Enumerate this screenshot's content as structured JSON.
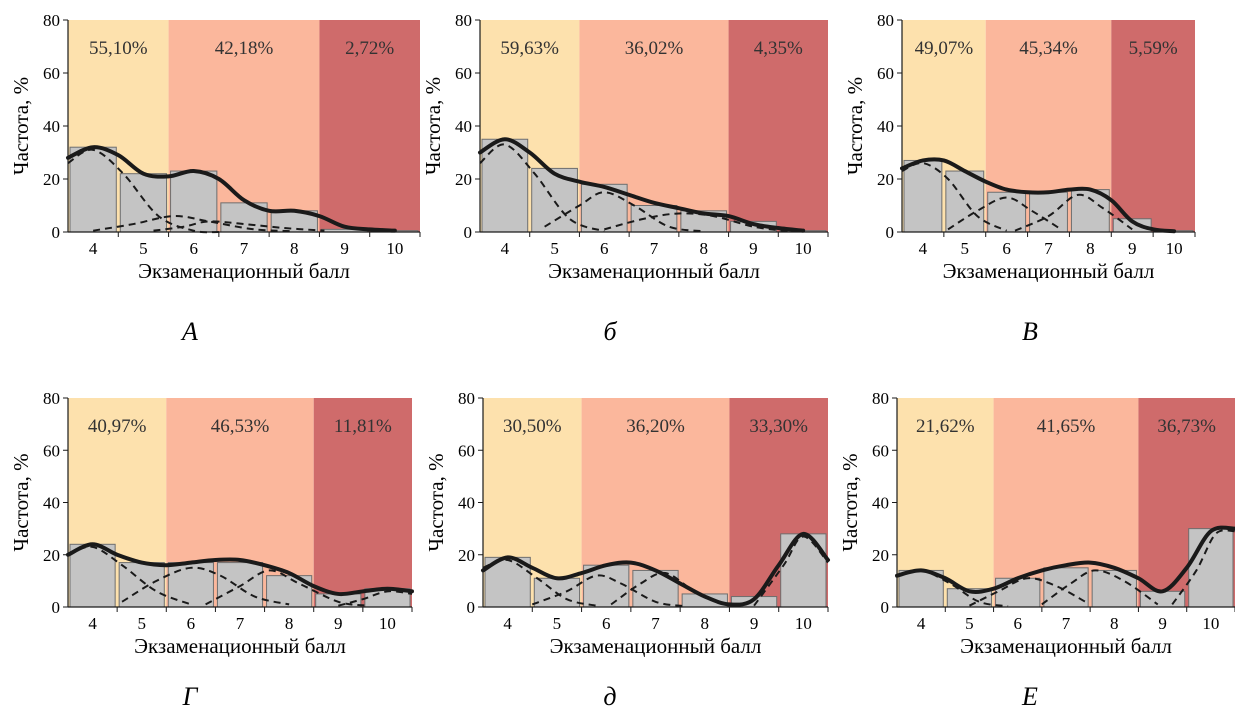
{
  "ylabel": "Частота, %",
  "xlabel": "Экзаменационный балл",
  "zone_colors": [
    "#fde1ad",
    "#fbb79c",
    "#cf6b6b"
  ],
  "bar_color": "#c4c4c4",
  "chart_data": [
    {
      "type": "bar",
      "panel_label": "А",
      "categories": [
        "4",
        "5",
        "6",
        "7",
        "8",
        "9",
        "10"
      ],
      "values": [
        32,
        22,
        23,
        11,
        8,
        1,
        0.5
      ],
      "ylim": [
        0,
        80
      ],
      "yticks": [
        0,
        20,
        40,
        60,
        80
      ],
      "zones": [
        {
          "label": "55,10%",
          "from": 3.5,
          "to": 5.5
        },
        {
          "label": "42,18%",
          "from": 5.5,
          "to": 8.5
        },
        {
          "label": "2,72%",
          "from": 8.5,
          "to": 10.5
        }
      ],
      "fit_curve": [
        [
          3.5,
          28
        ],
        [
          4,
          32
        ],
        [
          4.5,
          29
        ],
        [
          5,
          22
        ],
        [
          5.5,
          21
        ],
        [
          6,
          23
        ],
        [
          6.5,
          20
        ],
        [
          7,
          12
        ],
        [
          7.5,
          8
        ],
        [
          8,
          8
        ],
        [
          8.5,
          6
        ],
        [
          9,
          2
        ],
        [
          9.5,
          1
        ],
        [
          10,
          0.5
        ]
      ],
      "component_curves": [
        [
          [
            3.5,
            26
          ],
          [
            4,
            31
          ],
          [
            4.6,
            22
          ],
          [
            5.3,
            6
          ],
          [
            6,
            0.5
          ],
          [
            6.5,
            0
          ]
        ],
        [
          [
            4,
            0.5
          ],
          [
            4.8,
            3
          ],
          [
            5.6,
            6
          ],
          [
            6.3,
            4
          ],
          [
            7.2,
            1
          ],
          [
            8,
            0.3
          ]
        ],
        [
          [
            5.2,
            0.5
          ],
          [
            5.8,
            2
          ],
          [
            6.3,
            4
          ],
          [
            7,
            3
          ],
          [
            7.8,
            1.5
          ],
          [
            8.6,
            0.5
          ]
        ]
      ]
    },
    {
      "type": "bar",
      "panel_label": "б",
      "categories": [
        "4",
        "5",
        "6",
        "7",
        "8",
        "9",
        "10"
      ],
      "values": [
        35,
        24,
        18,
        10,
        8,
        4,
        0.5
      ],
      "ylim": [
        0,
        80
      ],
      "yticks": [
        0,
        20,
        40,
        60,
        80
      ],
      "zones": [
        {
          "label": "59,63%",
          "from": 3.5,
          "to": 5.5
        },
        {
          "label": "36,02%",
          "from": 5.5,
          "to": 8.5
        },
        {
          "label": "4,35%",
          "from": 8.5,
          "to": 10.5
        }
      ],
      "fit_curve": [
        [
          3.5,
          30
        ],
        [
          4,
          35
        ],
        [
          4.5,
          30
        ],
        [
          5,
          22
        ],
        [
          5.5,
          19
        ],
        [
          6,
          17
        ],
        [
          6.5,
          14
        ],
        [
          7,
          11
        ],
        [
          7.5,
          9
        ],
        [
          8,
          7
        ],
        [
          8.5,
          6
        ],
        [
          9,
          3
        ],
        [
          9.5,
          1.5
        ],
        [
          10,
          0.5
        ]
      ],
      "component_curves": [
        [
          [
            3.5,
            26
          ],
          [
            4,
            33
          ],
          [
            4.6,
            22
          ],
          [
            5.3,
            5
          ],
          [
            6,
            0.3
          ]
        ],
        [
          [
            4.8,
            2
          ],
          [
            5.5,
            10
          ],
          [
            6,
            15
          ],
          [
            6.6,
            10
          ],
          [
            7.3,
            2
          ],
          [
            8,
            0.3
          ]
        ],
        [
          [
            6,
            1
          ],
          [
            6.8,
            5
          ],
          [
            7.5,
            7
          ],
          [
            8.2,
            6
          ],
          [
            9,
            2
          ],
          [
            9.7,
            0.3
          ]
        ]
      ]
    },
    {
      "type": "bar",
      "panel_label": "В",
      "categories": [
        "4",
        "5",
        "6",
        "7",
        "8",
        "9",
        "10"
      ],
      "values": [
        27,
        23,
        15,
        15,
        16,
        5,
        0.5
      ],
      "ylim": [
        0,
        80
      ],
      "yticks": [
        0,
        20,
        40,
        60,
        80
      ],
      "zones": [
        {
          "label": "49,07%",
          "from": 3.5,
          "to": 5.5
        },
        {
          "label": "45,34%",
          "from": 5.5,
          "to": 8.5
        },
        {
          "label": "5,59%",
          "from": 8.5,
          "to": 10.5
        }
      ],
      "fit_curve": [
        [
          3.5,
          24
        ],
        [
          4,
          27
        ],
        [
          4.5,
          27
        ],
        [
          5,
          23
        ],
        [
          5.5,
          19
        ],
        [
          6,
          16
        ],
        [
          6.5,
          15
        ],
        [
          7,
          15
        ],
        [
          7.5,
          16
        ],
        [
          8,
          16
        ],
        [
          8.5,
          12
        ],
        [
          9,
          4
        ],
        [
          9.5,
          1
        ],
        [
          10,
          0.3
        ]
      ],
      "component_curves": [
        [
          [
            3.5,
            23
          ],
          [
            4,
            26
          ],
          [
            4.6,
            20
          ],
          [
            5.3,
            6
          ],
          [
            6,
            0.5
          ]
        ],
        [
          [
            4.6,
            1
          ],
          [
            5.3,
            8
          ],
          [
            6,
            13
          ],
          [
            6.6,
            8
          ],
          [
            7.3,
            1
          ]
        ],
        [
          [
            6.2,
            0.5
          ],
          [
            7,
            6
          ],
          [
            7.7,
            14
          ],
          [
            8.3,
            9
          ],
          [
            9,
            1
          ]
        ]
      ]
    },
    {
      "type": "bar",
      "panel_label": "Г",
      "categories": [
        "4",
        "5",
        "6",
        "7",
        "8",
        "9",
        "10"
      ],
      "values": [
        24,
        17,
        17,
        17,
        12,
        5,
        7
      ],
      "ylim": [
        0,
        80
      ],
      "yticks": [
        0,
        20,
        40,
        60,
        80
      ],
      "zones": [
        {
          "label": "40,97%",
          "from": 3.5,
          "to": 5.5
        },
        {
          "label": "46,53%",
          "from": 5.5,
          "to": 8.5
        },
        {
          "label": "11,81%",
          "from": 8.5,
          "to": 10.5
        }
      ],
      "fit_curve": [
        [
          3.5,
          20
        ],
        [
          4,
          24
        ],
        [
          4.5,
          20
        ],
        [
          5,
          17
        ],
        [
          5.5,
          16
        ],
        [
          6,
          17
        ],
        [
          6.5,
          18
        ],
        [
          7,
          18
        ],
        [
          7.5,
          16
        ],
        [
          8,
          13
        ],
        [
          8.5,
          8
        ],
        [
          9,
          5
        ],
        [
          9.5,
          6
        ],
        [
          10,
          7
        ],
        [
          10.5,
          6
        ]
      ],
      "component_curves": [
        [
          [
            3.5,
            20
          ],
          [
            4,
            23
          ],
          [
            4.6,
            16
          ],
          [
            5.3,
            6
          ],
          [
            6,
            1
          ]
        ],
        [
          [
            4.6,
            2
          ],
          [
            5.3,
            10
          ],
          [
            6,
            15
          ],
          [
            6.6,
            12
          ],
          [
            7.3,
            4
          ],
          [
            8,
            1
          ]
        ],
        [
          [
            6.3,
            1
          ],
          [
            7,
            8
          ],
          [
            7.6,
            14
          ],
          [
            8.2,
            9
          ],
          [
            9,
            2
          ],
          [
            9.6,
            0.5
          ]
        ],
        [
          [
            9,
            0.5
          ],
          [
            9.5,
            3
          ],
          [
            10,
            6
          ],
          [
            10.5,
            5
          ]
        ]
      ]
    },
    {
      "type": "bar",
      "panel_label": "д",
      "categories": [
        "4",
        "5",
        "6",
        "7",
        "8",
        "9",
        "10"
      ],
      "values": [
        19,
        11,
        16,
        14,
        5,
        4,
        28
      ],
      "ylim": [
        0,
        80
      ],
      "yticks": [
        0,
        20,
        40,
        60,
        80
      ],
      "zones": [
        {
          "label": "30,50%",
          "from": 3.5,
          "to": 5.5
        },
        {
          "label": "36,20%",
          "from": 5.5,
          "to": 8.5
        },
        {
          "label": "33,30%",
          "from": 8.5,
          "to": 10.5
        }
      ],
      "fit_curve": [
        [
          3.5,
          14
        ],
        [
          4,
          19
        ],
        [
          4.5,
          15
        ],
        [
          5,
          11
        ],
        [
          5.5,
          13
        ],
        [
          6,
          16
        ],
        [
          6.5,
          17
        ],
        [
          7,
          14
        ],
        [
          7.5,
          9
        ],
        [
          8,
          4
        ],
        [
          8.5,
          1
        ],
        [
          9,
          3
        ],
        [
          9.5,
          16
        ],
        [
          10,
          28
        ],
        [
          10.5,
          18
        ]
      ],
      "component_curves": [
        [
          [
            3.5,
            15
          ],
          [
            4,
            18
          ],
          [
            4.6,
            11
          ],
          [
            5.2,
            3
          ],
          [
            5.8,
            0.5
          ]
        ],
        [
          [
            4.5,
            1
          ],
          [
            5.2,
            6
          ],
          [
            5.8,
            12
          ],
          [
            6.3,
            9
          ],
          [
            7,
            2
          ],
          [
            7.6,
            0.3
          ]
        ],
        [
          [
            6.1,
            1
          ],
          [
            6.7,
            9
          ],
          [
            7.2,
            13
          ],
          [
            7.8,
            6
          ],
          [
            8.5,
            0.5
          ]
        ],
        [
          [
            9,
            0.5
          ],
          [
            9.6,
            16
          ],
          [
            10,
            27
          ],
          [
            10.5,
            17
          ]
        ]
      ]
    },
    {
      "type": "bar",
      "panel_label": "Е",
      "categories": [
        "4",
        "5",
        "6",
        "7",
        "8",
        "9",
        "10"
      ],
      "values": [
        14,
        7,
        11,
        15,
        14,
        6,
        30
      ],
      "ylim": [
        0,
        80
      ],
      "yticks": [
        0,
        20,
        40,
        60,
        80
      ],
      "zones": [
        {
          "label": "21,62%",
          "from": 3.5,
          "to": 5.5
        },
        {
          "label": "41,65%",
          "from": 5.5,
          "to": 8.5
        },
        {
          "label": "36,73%",
          "from": 8.5,
          "to": 10.5
        }
      ],
      "fit_curve": [
        [
          3.5,
          12
        ],
        [
          4,
          14
        ],
        [
          4.5,
          11
        ],
        [
          5,
          6
        ],
        [
          5.5,
          7
        ],
        [
          6,
          11
        ],
        [
          6.5,
          14
        ],
        [
          7,
          16
        ],
        [
          7.5,
          17
        ],
        [
          8,
          15
        ],
        [
          8.5,
          11
        ],
        [
          9,
          6
        ],
        [
          9.5,
          15
        ],
        [
          10,
          29
        ],
        [
          10.5,
          30
        ]
      ],
      "component_curves": [
        [
          [
            3.5,
            12
          ],
          [
            4,
            14
          ],
          [
            4.6,
            9
          ],
          [
            5.2,
            2
          ],
          [
            5.8,
            0.3
          ]
        ],
        [
          [
            5,
            0.5
          ],
          [
            5.6,
            6
          ],
          [
            6.2,
            11
          ],
          [
            6.8,
            8
          ],
          [
            7.4,
            2
          ]
        ],
        [
          [
            6.5,
            1
          ],
          [
            7.1,
            9
          ],
          [
            7.6,
            14
          ],
          [
            8.2,
            10
          ],
          [
            8.9,
            1
          ]
        ],
        [
          [
            9.2,
            1
          ],
          [
            9.7,
            14
          ],
          [
            10.1,
            28
          ],
          [
            10.5,
            29
          ]
        ]
      ]
    }
  ]
}
